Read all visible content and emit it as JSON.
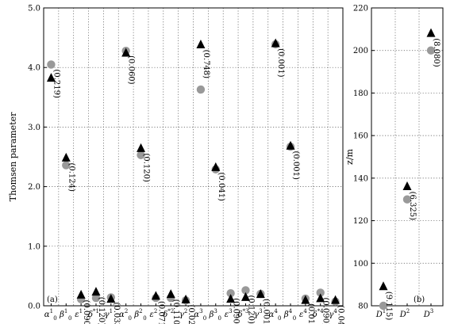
{
  "chart_data": [
    {
      "type": "scatter",
      "panel_label": "(a)",
      "ylabel": "Thomsen parameter",
      "ylim": [
        0,
        5
      ],
      "yticks": [
        "0.0",
        "1.0",
        "2.0",
        "3.0",
        "4.0",
        "5.0"
      ],
      "grid": "dotted",
      "categories": [
        {
          "base": "α",
          "sub": "0",
          "sup": "1"
        },
        {
          "base": "β",
          "sub": "0",
          "sup": "1"
        },
        {
          "base": "ε",
          "sub": "",
          "sup": "1"
        },
        {
          "base": "δ",
          "sub": "",
          "sup": "*1"
        },
        {
          "base": "γ",
          "sub": "",
          "sup": "1"
        },
        {
          "base": "α",
          "sub": "0",
          "sup": "2"
        },
        {
          "base": "β",
          "sub": "0",
          "sup": "2"
        },
        {
          "base": "ε",
          "sub": "",
          "sup": "2"
        },
        {
          "base": "δ",
          "sub": "",
          "sup": "*2"
        },
        {
          "base": "γ",
          "sub": "",
          "sup": "2"
        },
        {
          "base": "α",
          "sub": "0",
          "sup": "3"
        },
        {
          "base": "β",
          "sub": "0",
          "sup": "3"
        },
        {
          "base": "ε",
          "sub": "",
          "sup": "3"
        },
        {
          "base": "δ",
          "sub": "",
          "sup": "*3"
        },
        {
          "base": "γ",
          "sub": "",
          "sup": "3"
        },
        {
          "base": "α",
          "sub": "0",
          "sup": "4"
        },
        {
          "base": "β",
          "sub": "0",
          "sup": "4"
        },
        {
          "base": "ε",
          "sub": "",
          "sup": "4"
        },
        {
          "base": "δ",
          "sub": "",
          "sup": "*4"
        },
        {
          "base": "γ",
          "sub": "",
          "sup": "4"
        }
      ],
      "series": [
        {
          "marker": "circle",
          "color": "#999999",
          "values": [
            4.05,
            2.36,
            0.11,
            0.13,
            0.14,
            4.28,
            2.53,
            0.13,
            0.13,
            0.09,
            3.63,
            2.29,
            0.21,
            0.26,
            0.2,
            4.39,
            2.67,
            0.12,
            0.22,
            0.07
          ]
        },
        {
          "marker": "triangle",
          "color": "#000000",
          "values": [
            3.82,
            2.48,
            0.18,
            0.23,
            0.11,
            4.24,
            2.64,
            0.16,
            0.19,
            0.1,
            4.38,
            2.32,
            0.11,
            0.14,
            0.19,
            4.4,
            2.68,
            0.09,
            0.12,
            0.09
          ]
        }
      ],
      "annotations": [
        "(0.219)",
        "(0.124)",
        "(0.090)",
        "(0.120)",
        "(0.033)",
        "(0.060)",
        "(0.120)",
        "(0.071)",
        "(0.110)",
        "(0.025)",
        "(0.748)",
        "(0.041)",
        "(0.090)",
        "(0.120)",
        "(0.001)",
        "(0.001)",
        "(0.001)",
        "(0.010)",
        "(0.090)",
        "(0.044)"
      ]
    },
    {
      "type": "scatter",
      "panel_label": "(b)",
      "ylabel": "z/m",
      "ylim": [
        80,
        220
      ],
      "yticks": [
        "80",
        "100",
        "120",
        "140",
        "160",
        "180",
        "200",
        "220"
      ],
      "grid": "dotted",
      "categories": [
        {
          "base": "D",
          "sub": "",
          "sup": "1"
        },
        {
          "base": "D",
          "sub": "",
          "sup": "2"
        },
        {
          "base": "D",
          "sub": "",
          "sup": "3"
        }
      ],
      "series": [
        {
          "marker": "circle",
          "color": "#999999",
          "values": [
            80,
            130,
            200
          ]
        },
        {
          "marker": "triangle",
          "color": "#000000",
          "values": [
            89,
            136,
            208
          ]
        }
      ],
      "annotations": [
        "(9.115)",
        "(6.325)",
        "(8.080)"
      ]
    }
  ]
}
